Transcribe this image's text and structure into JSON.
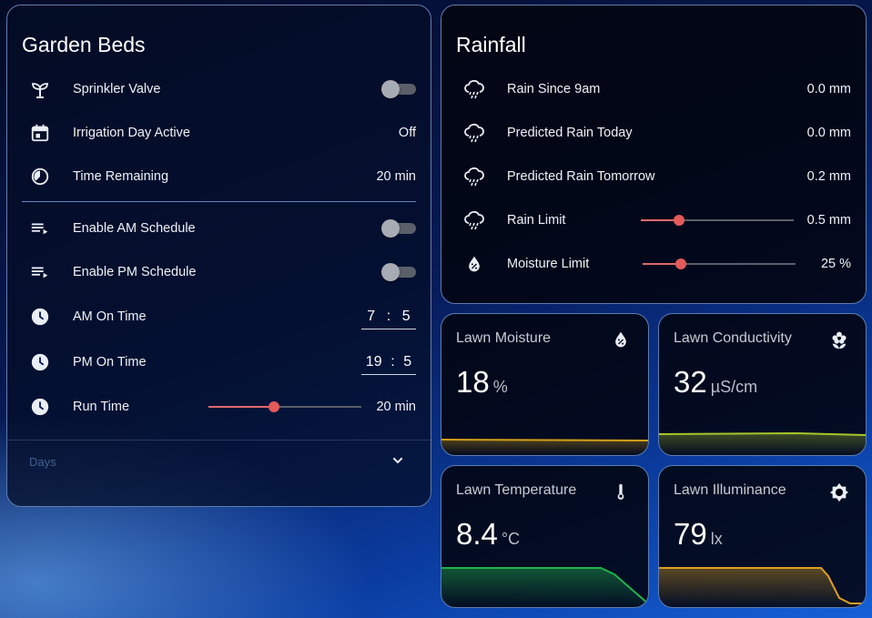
{
  "garden": {
    "title": "Garden Beds",
    "sprinkler_label": "Sprinkler Valve",
    "irrigation_label": "Irrigation Day Active",
    "irrigation_value": "Off",
    "remaining_label": "Time Remaining",
    "remaining_value": "20 min",
    "am_schedule_label": "Enable AM Schedule",
    "pm_schedule_label": "Enable PM Schedule",
    "am_time_label": "AM On Time",
    "am_hour": "7",
    "am_minute": "5",
    "pm_time_label": "PM On Time",
    "pm_hour": "19",
    "pm_minute": "5",
    "time_sep": ":",
    "run_time_label": "Run Time",
    "run_time_value": "20 min",
    "run_time_fraction": 0.43,
    "days_label": "Days"
  },
  "rainfall": {
    "title": "Rainfall",
    "since9_label": "Rain Since 9am",
    "since9_value": "0.0 mm",
    "today_label": "Predicted Rain Today",
    "today_value": "0.0 mm",
    "tomorrow_label": "Predicted Rain Tomorrow",
    "tomorrow_value": "0.2 mm",
    "limit_label": "Rain Limit",
    "limit_value": "0.5 mm",
    "limit_fraction": 0.25,
    "moisture_label": "Moisture Limit",
    "moisture_value": "25 %",
    "moisture_fraction": 0.25
  },
  "sensors": {
    "moisture": {
      "name": "Lawn Moisture",
      "value": "18",
      "unit": "%",
      "color": "#d4a017"
    },
    "conductivity": {
      "name": "Lawn Conductivity",
      "value": "32",
      "unit": "µS/cm",
      "color": "#a7c62a"
    },
    "temperature": {
      "name": "Lawn Temperature",
      "value": "8.4",
      "unit": "°C",
      "color": "#22b14c"
    },
    "illuminance": {
      "name": "Lawn Illuminance",
      "value": "79",
      "unit": "lx",
      "color": "#e0a020"
    }
  },
  "colors": {
    "accent": "#e35a5a",
    "border": "#5d7db0",
    "divider": "#5f86c8"
  },
  "icons": [
    "sprout-icon",
    "calendar-icon",
    "timer-icon",
    "list-icon",
    "clock-icon",
    "rain-icon",
    "water-percent-icon",
    "flower-icon",
    "thermometer-icon",
    "brightness-icon",
    "chevron-down-icon"
  ]
}
